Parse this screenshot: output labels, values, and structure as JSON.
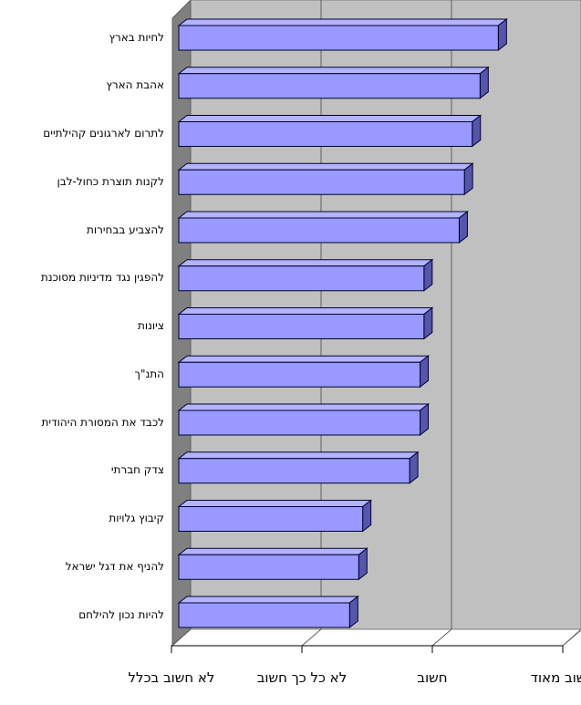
{
  "chart_data": {
    "type": "bar3d_horizontal",
    "categories": [
      "לחיות בארץ",
      "אהבת הארץ",
      "לתרום לארגונים קהילתיים",
      "לקנות תוצרת כחול-לבן",
      "להצביע בבחירות",
      "להפגין נגד מדיניות מסוכנת",
      "ציונות",
      "התנ\"ך",
      "לכבד את המסורת היהודית",
      "צדק חברתי",
      "קיבוץ גלויות",
      "להניף את דגל ישראל",
      "להיות נכון להילחם"
    ],
    "values": [
      3.45,
      3.31,
      3.25,
      3.19,
      3.15,
      2.88,
      2.88,
      2.85,
      2.85,
      2.77,
      2.41,
      2.38,
      2.31
    ],
    "color": "#9999ff",
    "xlim": [
      1,
      4
    ],
    "xticks": [
      {
        "value": 1,
        "label": "לא חשוב בכלל"
      },
      {
        "value": 2,
        "label": "לא כל כך חשוב"
      },
      {
        "value": 3,
        "label": "חשוב"
      },
      {
        "value": 4,
        "label": "חשוב מאוד"
      }
    ],
    "grid": true
  }
}
